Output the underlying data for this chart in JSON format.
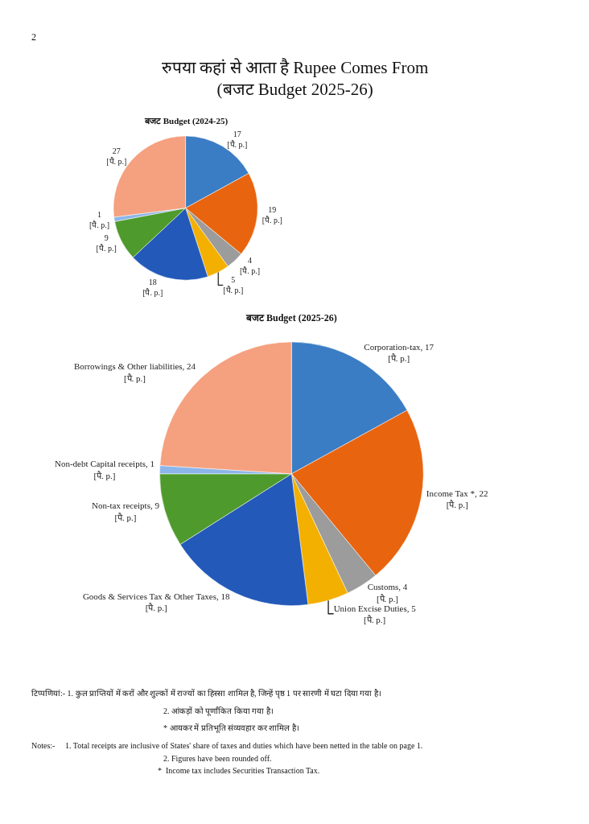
{
  "chart_data": [
    {
      "type": "pie",
      "title": "बजट Budget (2024-25)",
      "annotations": [
        "2",
        "रुपया कहां से आता है Rupee Comes From\n(बजट Budget 2025-26)"
      ],
      "categories": [
        null,
        null,
        null,
        null,
        null,
        null,
        null,
        null
      ],
      "values": [
        17,
        19,
        4,
        5,
        18,
        9,
        1,
        27
      ],
      "value_labels": [
        "17 [पै. p.]",
        "19 [पै. p.]",
        "4 [पै. p.]",
        "5 [पै. p.]",
        "18 [पै. p.]",
        "9 [पै. p.]",
        "1 [पै. p.]",
        "27 [पै. p.]"
      ],
      "colors": [
        "#3b7dc4",
        "#e8640f",
        "#9c9c9c",
        "#f3b000",
        "#2359b9",
        "#4e9a2c",
        "#8cb6ea",
        "#f5a07f"
      ]
    },
    {
      "type": "pie",
      "title": "बजट Budget (2025-26)",
      "categories": [
        "Corporation-tax",
        "Income Tax *",
        "Customs",
        "Union Excise Duties",
        "Goods & Services Tax & Other Taxes",
        "Non-tax receipts",
        "Non-debt Capital receipts",
        "Borrowings & Other liabilities"
      ],
      "values": [
        17,
        22,
        4,
        5,
        18,
        9,
        1,
        24
      ],
      "value_labels": [
        "17 [पै. p.]",
        "22 [पै. p.]",
        "4 [पै. p.]",
        "5 [पै. p.]",
        "18 [पै. p.]",
        "9 [पै. p.]",
        "1 [पै. p.]",
        "24 [पै. p.]"
      ],
      "colors": [
        "#3b7dc4",
        "#e8640f",
        "#9c9c9c",
        "#f3b000",
        "#2359b9",
        "#4e9a2c",
        "#8cb6ea",
        "#f5a07f"
      ],
      "annotations": [
        "टिप्पणियां:- 1. कुल प्राप्तियों में करों और शुल्कों में राज्यों का हिस्सा शामिल है, जिन्हें पृष्ठ 1 पर सारणी में घटा दिया गया है।",
        "2. आंकड़ों को पूर्णांकित किया गया है।",
        "* आयकर में प्रतिभूति संव्यवहार कर शामिल है।",
        "Notes:-     1. Total receipts are inclusive of States' share of taxes and duties which have been netted in the table on page 1.",
        "2. Figures have been rounded off.",
        "*  Income tax includes Securities Transaction Tax."
      ]
    }
  ]
}
